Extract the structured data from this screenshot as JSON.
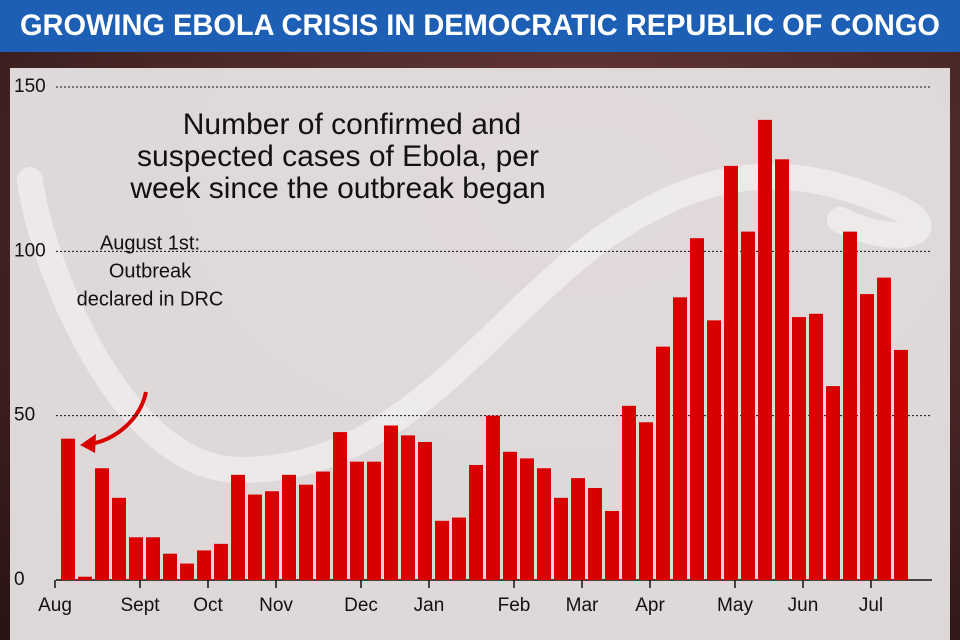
{
  "chart_data": {
    "type": "bar",
    "title": "GROWING EBOLA CRISIS IN DEMOCRATIC REPUBLIC OF CONGO",
    "subtitle": [
      "Number of confirmed and",
      "suspected cases of Ebola, per",
      "week since the outbreak began"
    ],
    "annotation": [
      "August 1st:",
      "Outbreak",
      "declared in DRC"
    ],
    "categories": [
      "Aug",
      null,
      null,
      null,
      null,
      "Sept",
      null,
      null,
      null,
      "Oct",
      null,
      null,
      null,
      "Nov",
      null,
      null,
      null,
      null,
      "Dec",
      null,
      null,
      null,
      "Jan",
      null,
      null,
      null,
      null,
      "Feb",
      null,
      null,
      null,
      "Mar",
      null,
      null,
      null,
      "Apr",
      null,
      null,
      null,
      null,
      "May",
      null,
      null,
      null,
      "Jun",
      null,
      null,
      null,
      "Jul",
      null
    ],
    "values": [
      43,
      1,
      34,
      25,
      13,
      13,
      8,
      5,
      9,
      11,
      32,
      26,
      27,
      32,
      29,
      33,
      45,
      36,
      36,
      47,
      44,
      42,
      18,
      19,
      35,
      50,
      39,
      37,
      34,
      25,
      31,
      28,
      21,
      53,
      48,
      71,
      86,
      104,
      79,
      126,
      106,
      140,
      128,
      80,
      81,
      59,
      106,
      87,
      92,
      70
    ],
    "color": "#d90000",
    "ylim": [
      0,
      150
    ],
    "yticks": [
      0,
      50,
      100,
      150
    ],
    "grid": true
  }
}
